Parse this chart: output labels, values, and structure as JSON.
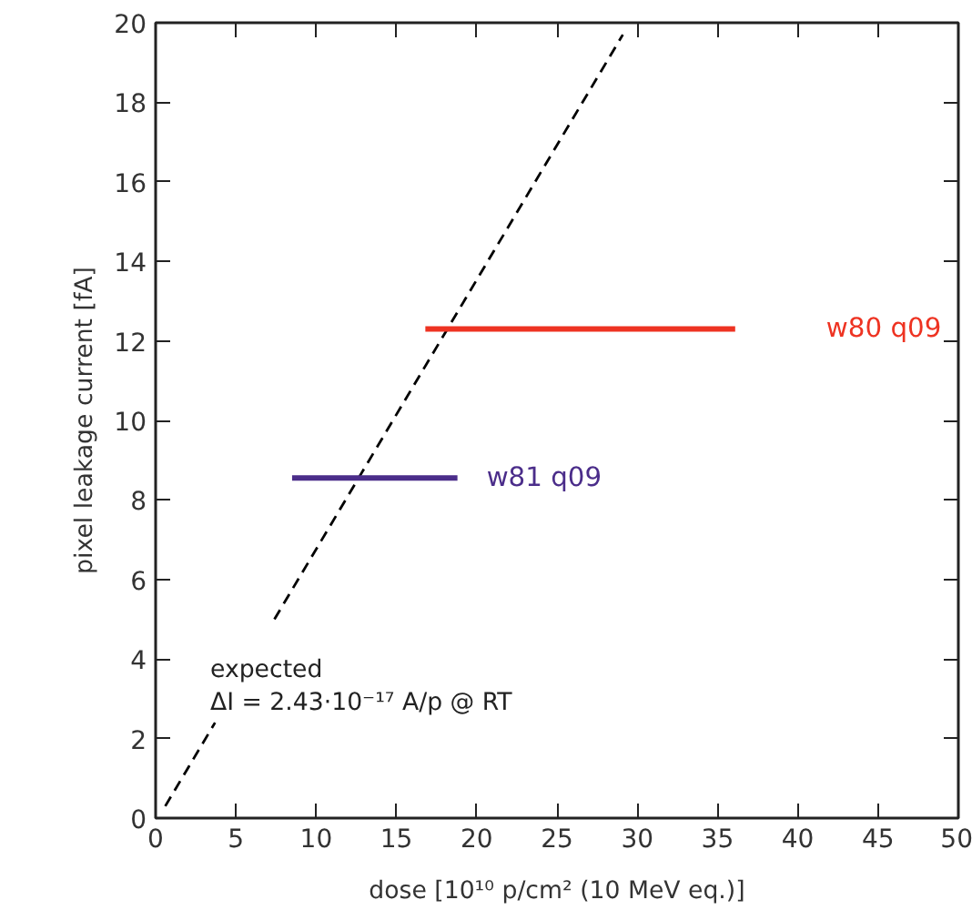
{
  "chart_data": {
    "type": "line",
    "xlabel": "dose [10¹⁰ p/cm² (10 MeV eq.)]",
    "ylabel": "pixel leakage current [fA]",
    "xlim": [
      0,
      50
    ],
    "ylim": [
      0,
      20
    ],
    "xticks": [
      0,
      5,
      10,
      15,
      20,
      25,
      30,
      35,
      40,
      45,
      50
    ],
    "yticks": [
      0,
      2,
      4,
      6,
      8,
      10,
      12,
      14,
      16,
      18,
      20
    ],
    "grid": false,
    "marker": "none",
    "series": [
      {
        "color": "#000000",
        "line_style": "dashed",
        "x": [
          0.6,
          3.7,
          5.5,
          7.4,
          29.1
        ],
        "values": [
          0.3,
          2.4,
          null,
          5.0,
          19.7
        ]
      },
      {
        "name": "w81 q09",
        "color": "#4b2d8a",
        "line_style": "solid",
        "x": [
          8.5,
          18.8
        ],
        "values": [
          8.55,
          8.55
        ]
      },
      {
        "name": "w80 q09",
        "color": "#ee3322",
        "line_style": "solid",
        "x": [
          16.8,
          36.1
        ],
        "values": [
          12.3,
          12.3
        ]
      }
    ],
    "annotations": [
      "expected\nΔI = 2.43·10⁻¹⁷ A/p @ RT"
    ]
  }
}
